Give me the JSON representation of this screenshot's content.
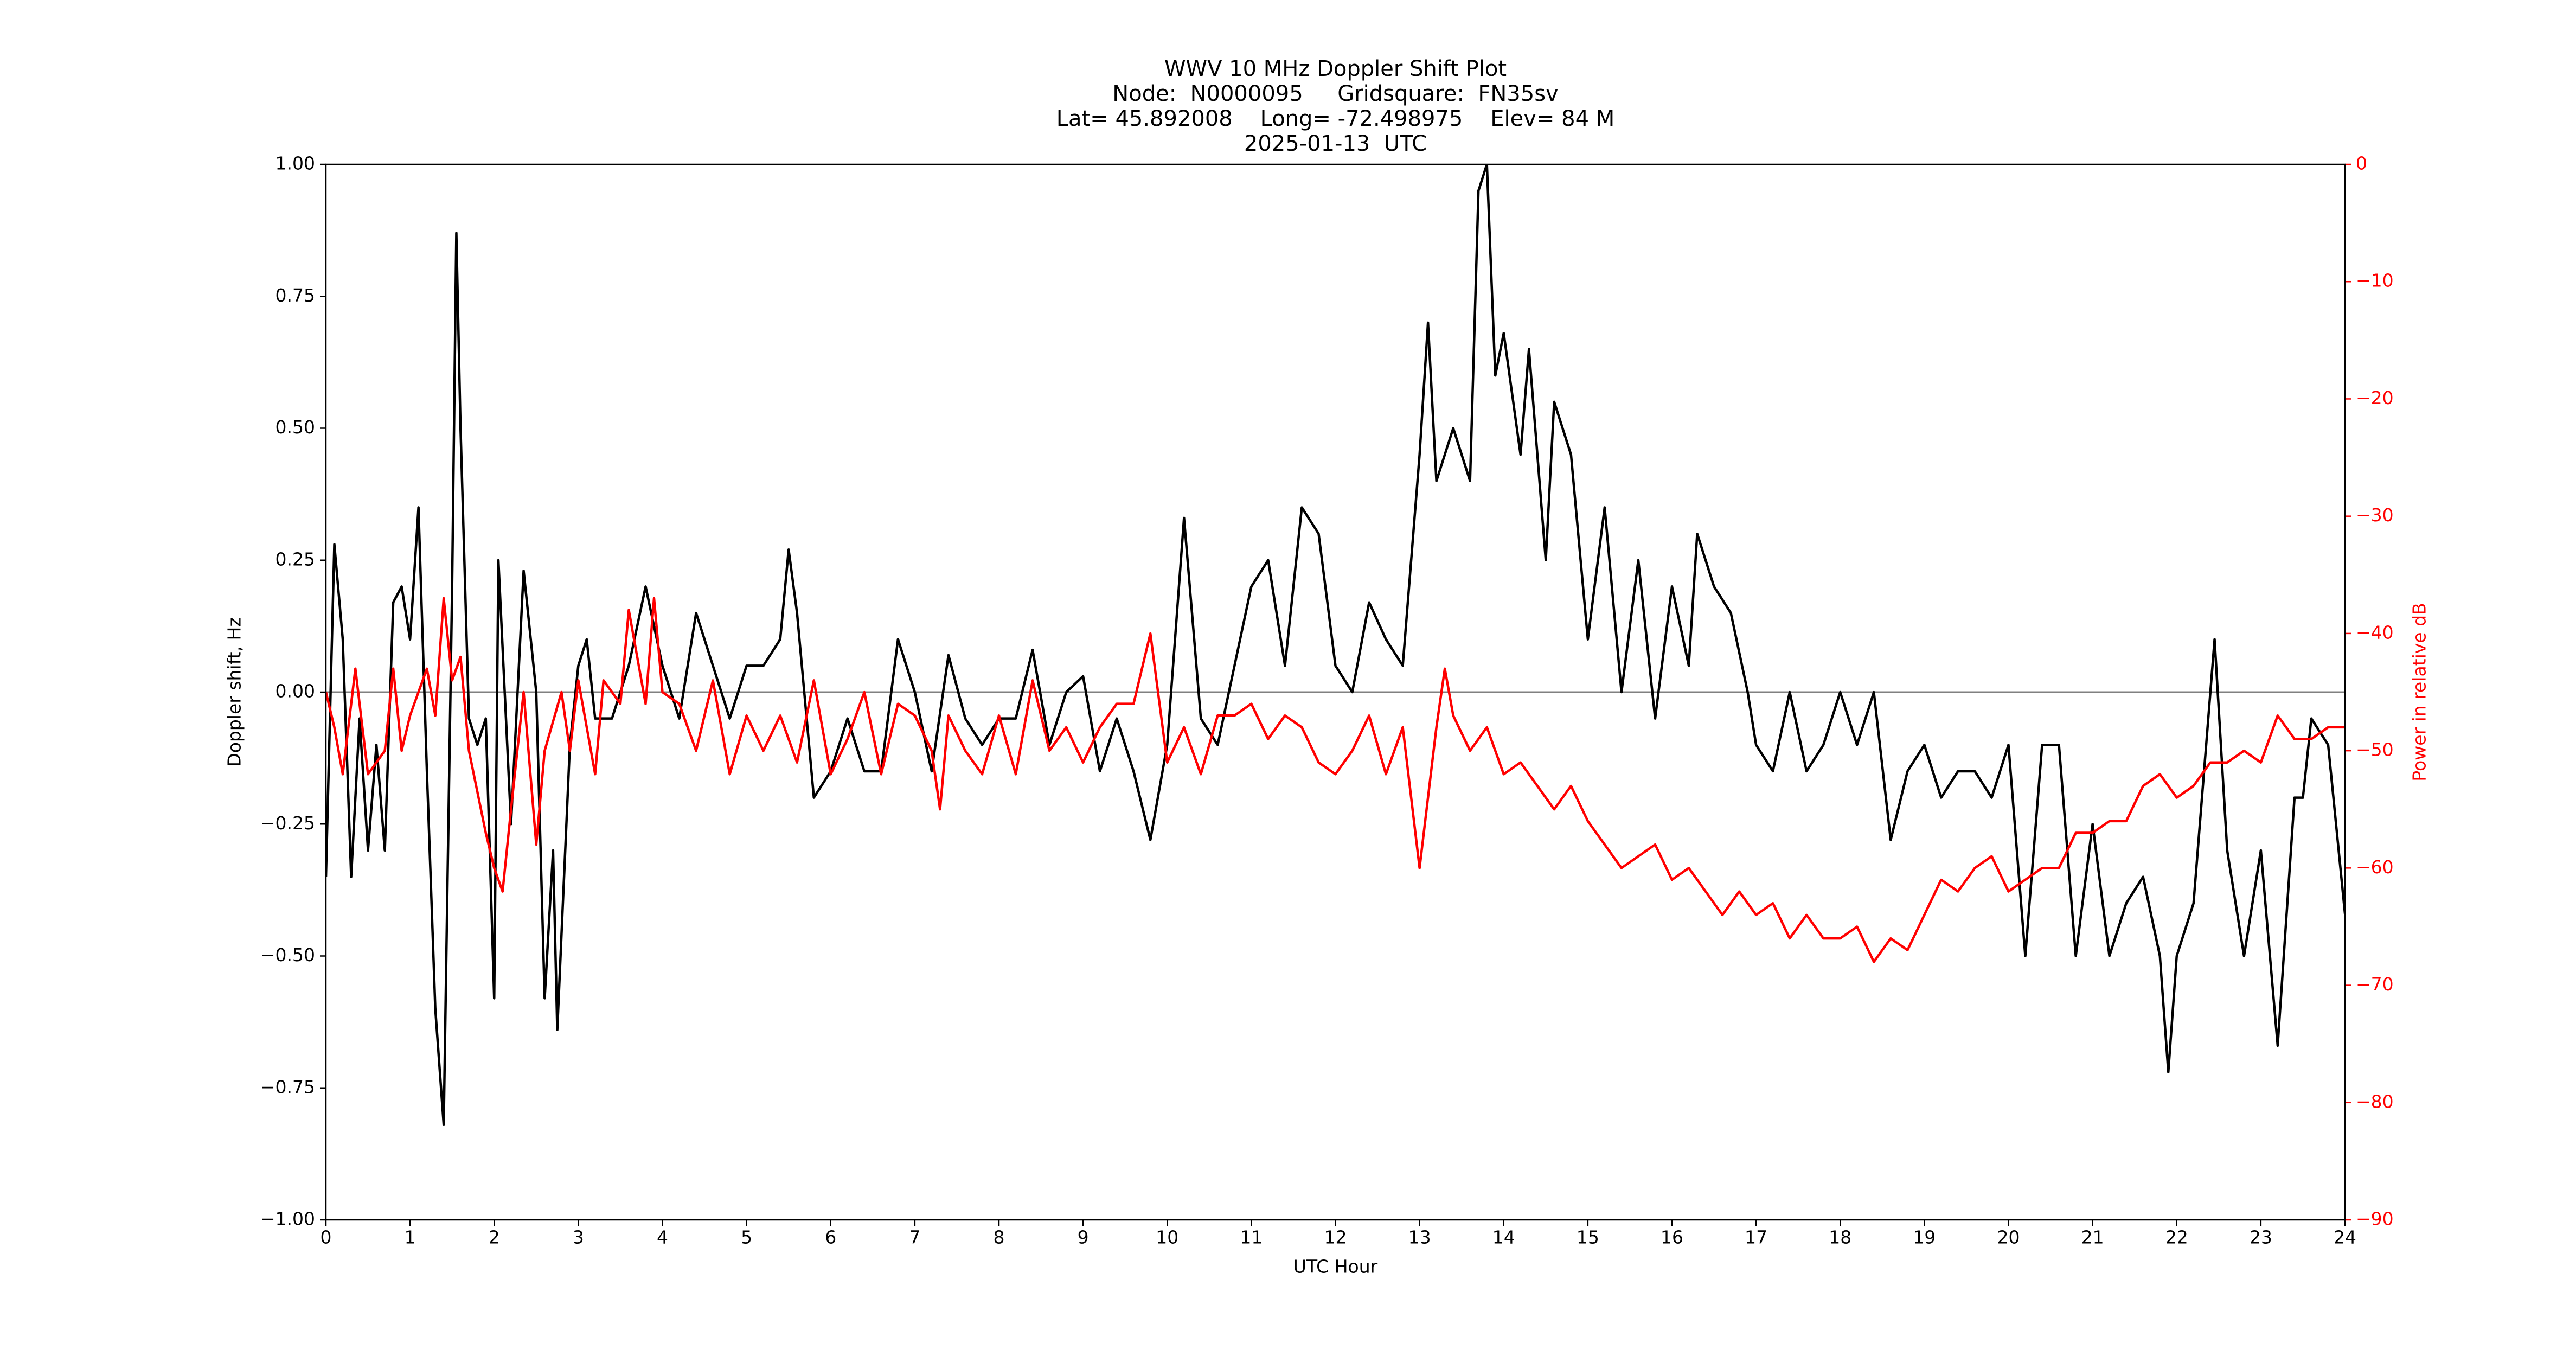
{
  "chart_data": {
    "type": "line",
    "title": [
      "WWV 10 MHz Doppler Shift Plot",
      "Node:  N0000095     Gridsquare:  FN35sv",
      "Lat= 45.892008    Long= -72.498975    Elev= 84 M",
      "2025-01-13  UTC"
    ],
    "xlabel": "UTC Hour",
    "ylabel": "Doppler shift, Hz",
    "y2label": "Power in relative dB",
    "xlim": [
      0,
      24
    ],
    "xticks": [
      0,
      1,
      2,
      3,
      4,
      5,
      6,
      7,
      8,
      9,
      10,
      11,
      12,
      13,
      14,
      15,
      16,
      17,
      18,
      19,
      20,
      21,
      22,
      23,
      24
    ],
    "ylim": [
      -1,
      1
    ],
    "yticks": [
      {
        "value": -1,
        "label": "−1.00"
      },
      {
        "value": -0.75,
        "label": "−0.75"
      },
      {
        "value": -0.5,
        "label": "−0.50"
      },
      {
        "value": -0.25,
        "label": "−0.25"
      },
      {
        "value": 0,
        "label": "0.00"
      },
      {
        "value": 0.25,
        "label": "0.25"
      },
      {
        "value": 0.5,
        "label": "0.50"
      },
      {
        "value": 0.75,
        "label": "0.75"
      },
      {
        "value": 1,
        "label": "1.00"
      }
    ],
    "y2lim": [
      -90,
      0
    ],
    "y2ticks": [
      {
        "value": -90,
        "label": "−90"
      },
      {
        "value": -80,
        "label": "−80"
      },
      {
        "value": -70,
        "label": "−70"
      },
      {
        "value": -60,
        "label": "−60"
      },
      {
        "value": -50,
        "label": "−50"
      },
      {
        "value": -40,
        "label": "−40"
      },
      {
        "value": -30,
        "label": "−30"
      },
      {
        "value": -20,
        "label": "−20"
      },
      {
        "value": -10,
        "label": "−10"
      },
      0
    ],
    "y2color": "#ff0000",
    "series": [
      {
        "color": "#000000",
        "x": [
          0,
          0.1,
          0.2,
          0.3,
          0.4,
          0.5,
          0.6,
          0.7,
          0.8,
          0.9,
          1.0,
          1.1,
          1.2,
          1.3,
          1.4,
          1.5,
          1.55,
          1.6,
          1.7,
          1.8,
          1.9,
          2.0,
          2.05,
          2.2,
          2.35,
          2.5,
          2.6,
          2.7,
          2.75,
          2.9,
          3.0,
          3.1,
          3.2,
          3.4,
          3.6,
          3.8,
          4.0,
          4.2,
          4.4,
          4.6,
          4.8,
          5.0,
          5.2,
          5.4,
          5.5,
          5.6,
          5.8,
          6.0,
          6.2,
          6.4,
          6.6,
          6.8,
          7.0,
          7.2,
          7.4,
          7.6,
          7.8,
          8.0,
          8.2,
          8.4,
          8.6,
          8.8,
          9.0,
          9.2,
          9.4,
          9.6,
          9.8,
          10.0,
          10.2,
          10.4,
          10.6,
          10.8,
          11.0,
          11.2,
          11.4,
          11.6,
          11.8,
          12.0,
          12.2,
          12.4,
          12.6,
          12.8,
          13.0,
          13.1,
          13.2,
          13.4,
          13.6,
          13.7,
          13.8,
          13.9,
          14.0,
          14.2,
          14.3,
          14.5,
          14.6,
          14.8,
          15.0,
          15.2,
          15.4,
          15.6,
          15.8,
          16.0,
          16.2,
          16.3,
          16.5,
          16.7,
          16.9,
          17.0,
          17.2,
          17.4,
          17.6,
          17.8,
          18.0,
          18.2,
          18.4,
          18.6,
          18.8,
          19.0,
          19.2,
          19.4,
          19.6,
          19.8,
          20.0,
          20.2,
          20.4,
          20.6,
          20.8,
          21.0,
          21.2,
          21.4,
          21.6,
          21.8,
          21.9,
          22.0,
          22.2,
          22.4,
          22.45,
          22.6,
          22.8,
          23.0,
          23.2,
          23.4,
          23.5,
          23.6,
          23.8,
          24.0
        ],
        "values": [
          -0.35,
          0.28,
          0.1,
          -0.35,
          -0.05,
          -0.3,
          -0.1,
          -0.3,
          0.17,
          0.2,
          0.1,
          0.35,
          -0.15,
          -0.6,
          -0.82,
          0.2,
          0.87,
          0.5,
          -0.05,
          -0.1,
          -0.05,
          -0.58,
          0.25,
          -0.25,
          0.23,
          0.0,
          -0.58,
          -0.3,
          -0.64,
          -0.1,
          0.05,
          0.1,
          -0.05,
          -0.05,
          0.05,
          0.2,
          0.05,
          -0.05,
          0.15,
          0.05,
          -0.05,
          0.05,
          0.05,
          0.1,
          0.27,
          0.15,
          -0.2,
          -0.15,
          -0.05,
          -0.15,
          -0.15,
          0.1,
          0.0,
          -0.15,
          0.07,
          -0.05,
          -0.1,
          -0.05,
          -0.05,
          0.08,
          -0.1,
          0.0,
          0.03,
          -0.15,
          -0.05,
          -0.15,
          -0.28,
          -0.1,
          0.33,
          -0.05,
          -0.1,
          0.05,
          0.2,
          0.25,
          0.05,
          0.35,
          0.3,
          0.05,
          0.0,
          0.17,
          0.1,
          0.05,
          0.45,
          0.7,
          0.4,
          0.5,
          0.4,
          0.95,
          1.0,
          0.6,
          0.68,
          0.45,
          0.65,
          0.25,
          0.55,
          0.45,
          0.1,
          0.35,
          0.0,
          0.25,
          -0.05,
          0.2,
          0.05,
          0.3,
          0.2,
          0.15,
          0.0,
          -0.1,
          -0.15,
          0.0,
          -0.15,
          -0.1,
          0.0,
          -0.1,
          0.0,
          -0.28,
          -0.15,
          -0.1,
          -0.2,
          -0.15,
          -0.15,
          -0.2,
          -0.1,
          -0.5,
          -0.1,
          -0.1,
          -0.5,
          -0.25,
          -0.5,
          -0.4,
          -0.35,
          -0.5,
          -0.72,
          -0.5,
          -0.4,
          0.0,
          0.1,
          -0.3,
          -0.5,
          -0.3,
          -0.67,
          -0.2,
          -0.2,
          -0.05,
          -0.1,
          -0.42
        ]
      },
      {
        "color": "#ff0000",
        "axis": "y2",
        "x": [
          0,
          0.1,
          0.2,
          0.35,
          0.5,
          0.7,
          0.8,
          0.9,
          1.0,
          1.2,
          1.3,
          1.4,
          1.5,
          1.6,
          1.7,
          1.9,
          2.0,
          2.1,
          2.2,
          2.35,
          2.5,
          2.6,
          2.8,
          2.9,
          3.0,
          3.2,
          3.3,
          3.5,
          3.6,
          3.8,
          3.9,
          4.0,
          4.2,
          4.4,
          4.6,
          4.8,
          5.0,
          5.2,
          5.4,
          5.6,
          5.8,
          6.0,
          6.2,
          6.4,
          6.6,
          6.8,
          7.0,
          7.2,
          7.3,
          7.4,
          7.6,
          7.8,
          8.0,
          8.2,
          8.4,
          8.6,
          8.8,
          9.0,
          9.2,
          9.4,
          9.6,
          9.8,
          10.0,
          10.2,
          10.4,
          10.6,
          10.8,
          11.0,
          11.2,
          11.4,
          11.6,
          11.8,
          12.0,
          12.2,
          12.4,
          12.6,
          12.8,
          13.0,
          13.2,
          13.3,
          13.4,
          13.6,
          13.8,
          14.0,
          14.2,
          14.4,
          14.6,
          14.8,
          15.0,
          15.2,
          15.4,
          15.6,
          15.8,
          16.0,
          16.2,
          16.4,
          16.6,
          16.8,
          17.0,
          17.2,
          17.4,
          17.6,
          17.8,
          18.0,
          18.2,
          18.4,
          18.6,
          18.8,
          19.0,
          19.2,
          19.4,
          19.6,
          19.8,
          20.0,
          20.2,
          20.4,
          20.6,
          20.8,
          21.0,
          21.2,
          21.4,
          21.6,
          21.8,
          22.0,
          22.2,
          22.4,
          22.6,
          22.8,
          23.0,
          23.2,
          23.4,
          23.6,
          23.8,
          24.0
        ],
        "values": [
          -45,
          -48,
          -52,
          -43,
          -52,
          -50,
          -43,
          -50,
          -47,
          -43,
          -47,
          -37,
          -44,
          -42,
          -50,
          -57,
          -60,
          -62,
          -55,
          -45,
          -58,
          -50,
          -45,
          -50,
          -44,
          -52,
          -44,
          -46,
          -38,
          -46,
          -37,
          -45,
          -46,
          -50,
          -44,
          -52,
          -47,
          -50,
          -47,
          -51,
          -44,
          -52,
          -49,
          -45,
          -52,
          -46,
          -47,
          -50,
          -55,
          -47,
          -50,
          -52,
          -47,
          -52,
          -44,
          -50,
          -48,
          -51,
          -48,
          -46,
          -46,
          -40,
          -51,
          -48,
          -52,
          -47,
          -47,
          -46,
          -49,
          -47,
          -48,
          -51,
          -52,
          -50,
          -47,
          -52,
          -48,
          -60,
          -48,
          -43,
          -47,
          -50,
          -48,
          -52,
          -51,
          -53,
          -55,
          -53,
          -56,
          -58,
          -60,
          -59,
          -58,
          -61,
          -60,
          -62,
          -64,
          -62,
          -64,
          -63,
          -66,
          -64,
          -66,
          -66,
          -65,
          -68,
          -66,
          -67,
          -64,
          -61,
          -62,
          -60,
          -59,
          -62,
          -61,
          -60,
          -60,
          -57,
          -57,
          -56,
          -56,
          -53,
          -52,
          -54,
          -53,
          -51,
          -51,
          -50,
          -51,
          -47,
          -49,
          -49,
          -48,
          -48
        ]
      }
    ]
  }
}
